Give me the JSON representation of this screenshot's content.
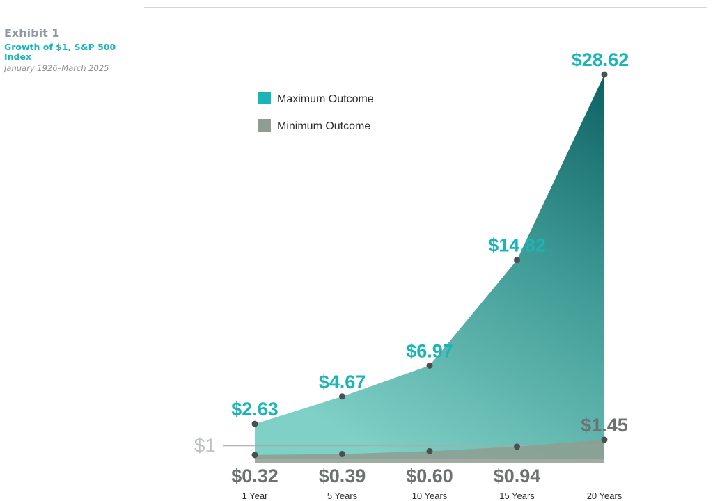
{
  "header": {
    "exhibit": "Exhibit 1",
    "title": "Growth of $1, S&P 500 Index",
    "date_range": "January 1926–March 2025"
  },
  "chart_data": {
    "type": "area",
    "title": "Growth of $1, S&P 500 Index",
    "subtitle": "January 1926–March 2025",
    "categories": [
      "1 Year",
      "5 Years",
      "10 Years",
      "15 Years",
      "20 Years"
    ],
    "series": [
      {
        "name": "Maximum Outcome",
        "values": [
          2.63,
          4.67,
          6.97,
          14.82,
          28.62
        ],
        "labels": [
          "$2.63",
          "$4.67",
          "$6.97",
          "$14.82",
          "$28.62"
        ],
        "color": "#1bb5b8"
      },
      {
        "name": "Minimum Outcome",
        "values": [
          0.32,
          0.39,
          0.6,
          0.94,
          1.45
        ],
        "labels": [
          "$0.32",
          "$0.39",
          "$0.60",
          "$0.94",
          "$1.45"
        ],
        "color": "#8f9e91"
      }
    ],
    "reference_line": {
      "value": 1,
      "label": "$1"
    },
    "ylim": [
      0,
      28.62
    ],
    "legend_position": "top-left",
    "grid": false,
    "xlabel": "",
    "ylabel": ""
  }
}
